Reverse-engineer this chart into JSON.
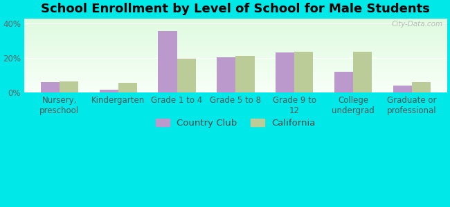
{
  "title": "School Enrollment by Level of School for Male Students",
  "categories": [
    "Nursery,\npreschool",
    "Kindergarten",
    "Grade 1 to 4",
    "Grade 5 to 8",
    "Grade 9 to\n12",
    "College\nundergrad",
    "Graduate or\nprofessional"
  ],
  "country_club": [
    6.0,
    1.5,
    35.5,
    20.5,
    23.0,
    12.0,
    4.0
  ],
  "california": [
    6.5,
    5.5,
    19.5,
    21.0,
    23.5,
    23.5,
    6.0
  ],
  "bar_color_cc": "#bb99cc",
  "bar_color_ca": "#bbcc99",
  "background_color": "#00e8e8",
  "ytick_labels": [
    "0%",
    "20%",
    "40%"
  ],
  "yticks": [
    0,
    20,
    40
  ],
  "ylim": [
    0,
    43
  ],
  "title_fontsize": 13,
  "tick_fontsize": 8.5,
  "legend_fontsize": 9.5,
  "watermark": "City-Data.com"
}
